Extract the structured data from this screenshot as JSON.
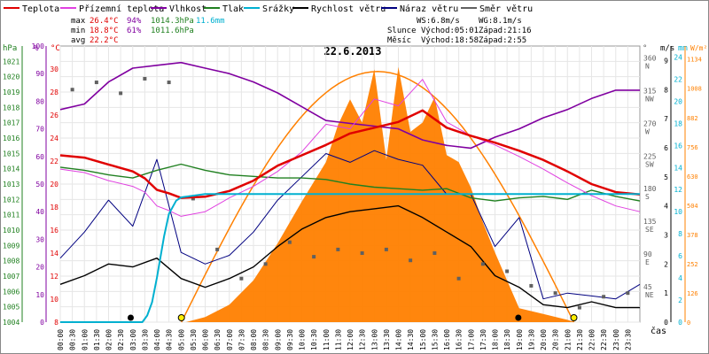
{
  "legend": [
    {
      "label": "Teplota",
      "color": "#e00000"
    },
    {
      "label": "Přízemní teplota",
      "color": "#e040e0"
    },
    {
      "label": "Vlhkost",
      "color": "#8000a0"
    },
    {
      "label": "Tlak",
      "color": "#208020"
    },
    {
      "label": "Srážky",
      "color": "#00b0d0"
    },
    {
      "label": "Rychlost větru",
      "color": "#000000"
    },
    {
      "label": "Náraz větru",
      "color": "#000080"
    },
    {
      "label": "Směr větru",
      "color": "#606060"
    }
  ],
  "stats": {
    "max_label": "max",
    "max_temp": "26.4°C",
    "max_hum": "94%",
    "max_press": "1014.3hPa",
    "max_rain": "11.6mm",
    "min_label": "min",
    "min_temp": "18.8°C",
    "min_hum": "61%",
    "min_press": "1011.6hPa",
    "avg_label": "avg",
    "avg_temp": "22.2°C"
  },
  "wind": {
    "ws": "WS:6.8m/s",
    "wg": "WG:8.1m/s"
  },
  "astro": {
    "sun_label": "Slunce",
    "sun_rise": "Východ:05:01",
    "sun_set": "Západ:21:16",
    "moon_label": "Měsíc",
    "moon_rise": "Východ:18:58",
    "moon_set": "Západ:2:55"
  },
  "date": "22.6.2013",
  "colors": {
    "temp": "#e00000",
    "ground": "#e040e0",
    "hum": "#8000a0",
    "press": "#208020",
    "rain": "#00b0d0",
    "wind": "#000000",
    "gust": "#000080",
    "dir": "#606060",
    "solar": "#ff8000"
  },
  "axes": {
    "hpa_unit": "hPa",
    "pct_unit": "%",
    "c_unit": "°C",
    "hpa_ticks": [
      "1021",
      "1020",
      "1019",
      "1018",
      "1017",
      "1016",
      "1015",
      "1014",
      "1013",
      "1012",
      "1011",
      "1010",
      "1009",
      "1008",
      "1007",
      "1006",
      "1005",
      "1004"
    ],
    "pct_ticks": [
      "100",
      "90",
      "80",
      "70",
      "60",
      "50",
      "40",
      "30",
      "20",
      "10",
      "0"
    ],
    "c_ticks": [
      "30",
      "28",
      "26",
      "24",
      "22",
      "20",
      "18",
      "16",
      "14",
      "12",
      "10",
      "8"
    ],
    "deg_unit": "°",
    "dir_ticks": [
      {
        "deg": "360",
        "dir": "N"
      },
      {
        "deg": "315",
        "dir": "NW"
      },
      {
        "deg": "270",
        "dir": "W"
      },
      {
        "deg": "225",
        "dir": "SW"
      },
      {
        "deg": "180",
        "dir": "S"
      },
      {
        "deg": "135",
        "dir": "SE"
      },
      {
        "deg": "90",
        "dir": "E"
      },
      {
        "deg": "45",
        "dir": "NE"
      }
    ],
    "ms_unit": "m/s",
    "ms_ticks": [
      "9",
      "8",
      "7",
      "6",
      "5",
      "4",
      "3",
      "2",
      "1",
      "0"
    ],
    "mm_unit": "mm",
    "mm_ticks": [
      "24",
      "22",
      "20",
      "18",
      "16",
      "14",
      "12",
      "10",
      "8",
      "6",
      "4",
      "2",
      "0"
    ],
    "wm2_unit": "W/m²",
    "wm2_ticks": [
      "1134",
      "1008",
      "882",
      "756",
      "630",
      "504",
      "378",
      "252",
      "126",
      "0"
    ],
    "time_label": "čas",
    "time_ticks": [
      "00:00",
      "00:30",
      "01:00",
      "01:30",
      "02:00",
      "02:30",
      "03:00",
      "03:30",
      "04:00",
      "04:30",
      "05:00",
      "05:30",
      "06:00",
      "06:30",
      "07:00",
      "07:30",
      "08:00",
      "08:30",
      "09:00",
      "09:30",
      "10:00",
      "10:30",
      "11:00",
      "11:30",
      "12:00",
      "12:30",
      "13:00",
      "13:30",
      "14:00",
      "14:30",
      "15:00",
      "15:30",
      "16:00",
      "16:30",
      "17:00",
      "17:30",
      "18:00",
      "18:30",
      "19:00",
      "19:30",
      "20:00",
      "20:30",
      "21:00",
      "21:30",
      "22:00",
      "22:30",
      "23:00",
      "23:30"
    ]
  },
  "chart_data": {
    "type": "line",
    "title": "22.6.2013",
    "xlabel": "čas",
    "xlim": [
      0,
      24
    ],
    "grid": true,
    "series": [
      {
        "name": "Teplota",
        "unit": "°C",
        "ylim": [
          8,
          32
        ],
        "x": [
          0,
          1,
          2,
          3,
          3.5,
          4,
          4.5,
          5,
          6,
          7,
          8,
          9,
          10,
          11,
          12,
          13,
          14,
          15,
          16,
          17,
          18,
          19,
          20,
          21,
          22,
          23,
          24
        ],
        "values": [
          22.5,
          22.3,
          21.7,
          21.1,
          20.5,
          19.5,
          19.2,
          18.8,
          18.9,
          19.4,
          20.3,
          21.6,
          22.5,
          23.4,
          24.4,
          24.9,
          25.4,
          26.4,
          24.9,
          24.2,
          23.6,
          22.9,
          22.1,
          21.1,
          20.0,
          19.3,
          19.1
        ]
      },
      {
        "name": "Přízemní teplota",
        "unit": "°C",
        "ylim": [
          8,
          32
        ],
        "x": [
          0,
          1,
          2,
          3,
          3.5,
          4,
          4.5,
          5,
          6,
          7,
          8,
          9,
          10,
          11,
          12,
          13,
          14,
          15,
          16,
          17,
          18,
          19,
          20,
          21,
          22,
          23,
          24
        ],
        "values": [
          21.3,
          21.0,
          20.3,
          19.8,
          19.3,
          18.1,
          17.7,
          17.2,
          17.6,
          18.8,
          19.8,
          21.1,
          22.8,
          25.2,
          24.8,
          27.4,
          26.8,
          29.1,
          25.4,
          24.2,
          23.4,
          22.4,
          21.3,
          20.1,
          19.0,
          18.1,
          17.6
        ]
      },
      {
        "name": "Vlhkost",
        "unit": "%",
        "ylim": [
          0,
          100
        ],
        "x": [
          0,
          1,
          2,
          3,
          4,
          5,
          6,
          7,
          8,
          9,
          10,
          11,
          12,
          13,
          14,
          15,
          16,
          17,
          18,
          19,
          20,
          21,
          22,
          23,
          24
        ],
        "values": [
          77,
          79,
          87,
          92,
          93,
          94,
          92,
          90,
          87,
          83,
          78,
          73,
          72,
          71,
          70,
          66,
          64,
          63,
          67,
          70,
          74,
          77,
          81,
          84,
          84
        ]
      },
      {
        "name": "Tlak",
        "unit": "hPa",
        "ylim": [
          1004,
          1022
        ],
        "x": [
          0,
          1,
          2,
          3,
          4,
          5,
          6,
          7,
          8,
          9,
          10,
          11,
          12,
          13,
          14,
          15,
          16,
          17,
          18,
          19,
          20,
          21,
          22,
          23,
          24
        ],
        "values": [
          1014.1,
          1013.9,
          1013.6,
          1013.4,
          1013.9,
          1014.3,
          1013.9,
          1013.6,
          1013.5,
          1013.4,
          1013.4,
          1013.3,
          1013.0,
          1012.8,
          1012.7,
          1012.6,
          1012.7,
          1012.1,
          1011.9,
          1012.1,
          1012.2,
          1012.0,
          1012.6,
          1012.2,
          1011.9
        ]
      },
      {
        "name": "Srážky",
        "unit": "mm",
        "ylim": [
          0,
          25
        ],
        "x": [
          0,
          3.4,
          3.6,
          3.8,
          4.0,
          4.3,
          4.5,
          4.8,
          5,
          6,
          24
        ],
        "values": [
          0,
          0,
          0.6,
          1.8,
          4.0,
          7.8,
          9.8,
          11.0,
          11.3,
          11.6,
          11.6
        ]
      },
      {
        "name": "Rychlost větru",
        "unit": "m/s",
        "ylim": [
          0,
          9.5
        ],
        "x": [
          0,
          1,
          2,
          3,
          4,
          5,
          6,
          7,
          8,
          9,
          10,
          11,
          12,
          13,
          14,
          15,
          16,
          17,
          18,
          19,
          20,
          21,
          22,
          23,
          24
        ],
        "values": [
          1.3,
          1.6,
          2.0,
          1.9,
          2.2,
          1.5,
          1.2,
          1.5,
          1.9,
          2.6,
          3.2,
          3.6,
          3.8,
          3.9,
          4.0,
          3.6,
          3.1,
          2.6,
          1.6,
          1.2,
          0.6,
          0.5,
          0.7,
          0.5,
          0.5
        ]
      },
      {
        "name": "Náraz větru",
        "unit": "m/s",
        "ylim": [
          0,
          9.5
        ],
        "x": [
          0,
          1,
          2,
          3,
          4,
          5,
          6,
          7,
          8,
          9,
          10,
          11,
          12,
          13,
          14,
          15,
          16,
          17,
          18,
          19,
          20,
          21,
          22,
          23,
          24
        ],
        "values": [
          2.2,
          3.1,
          4.2,
          3.3,
          5.6,
          2.4,
          2.0,
          2.3,
          3.1,
          4.2,
          5.0,
          5.8,
          5.5,
          5.9,
          5.6,
          5.4,
          4.4,
          4.4,
          2.6,
          3.6,
          0.8,
          1.0,
          0.9,
          0.8,
          1.3
        ]
      },
      {
        "name": "Směr větru",
        "unit": "°",
        "ylim": [
          0,
          380
        ],
        "x": [],
        "values": []
      },
      {
        "unit": "W/m²",
        "ylim": [
          0,
          1190
        ],
        "x": [
          0,
          5.2,
          6.0,
          7.0,
          8.0,
          9.0,
          10.0,
          11.0,
          11.5,
          12,
          12.5,
          13,
          13.5,
          14,
          14.5,
          15,
          15.5,
          16,
          16.5,
          17,
          17.5,
          18,
          18.5,
          19,
          20,
          21,
          21.3,
          24
        ],
        "values": [
          0,
          0,
          22,
          75,
          180,
          340,
          520,
          690,
          850,
          960,
          860,
          1090,
          700,
          1100,
          820,
          860,
          970,
          720,
          690,
          580,
          430,
          300,
          180,
          60,
          35,
          10,
          0,
          0
        ]
      }
    ],
    "wind_direction_deg": {
      "x": [
        0.5,
        1.5,
        2.5,
        3.5,
        4.5,
        5.5,
        6.5,
        7.5,
        8.5,
        9.5,
        10.5,
        11.5,
        12.5,
        13.5,
        14.5,
        15.5,
        16.5,
        17.5,
        18.5,
        19.5,
        20.5,
        21.5,
        22.5,
        23.5
      ],
      "values": [
        320,
        330,
        315,
        335,
        330,
        170,
        100,
        60,
        80,
        110,
        90,
        100,
        95,
        100,
        85,
        95,
        60,
        80,
        70,
        50,
        40,
        20,
        35,
        40
      ]
    },
    "markers": [
      {
        "type": "moonset",
        "time": "02:55"
      },
      {
        "type": "sunrise",
        "time": "05:01"
      },
      {
        "type": "moonrise",
        "time": "18:58"
      },
      {
        "type": "sunset",
        "time": "21:16"
      }
    ]
  }
}
